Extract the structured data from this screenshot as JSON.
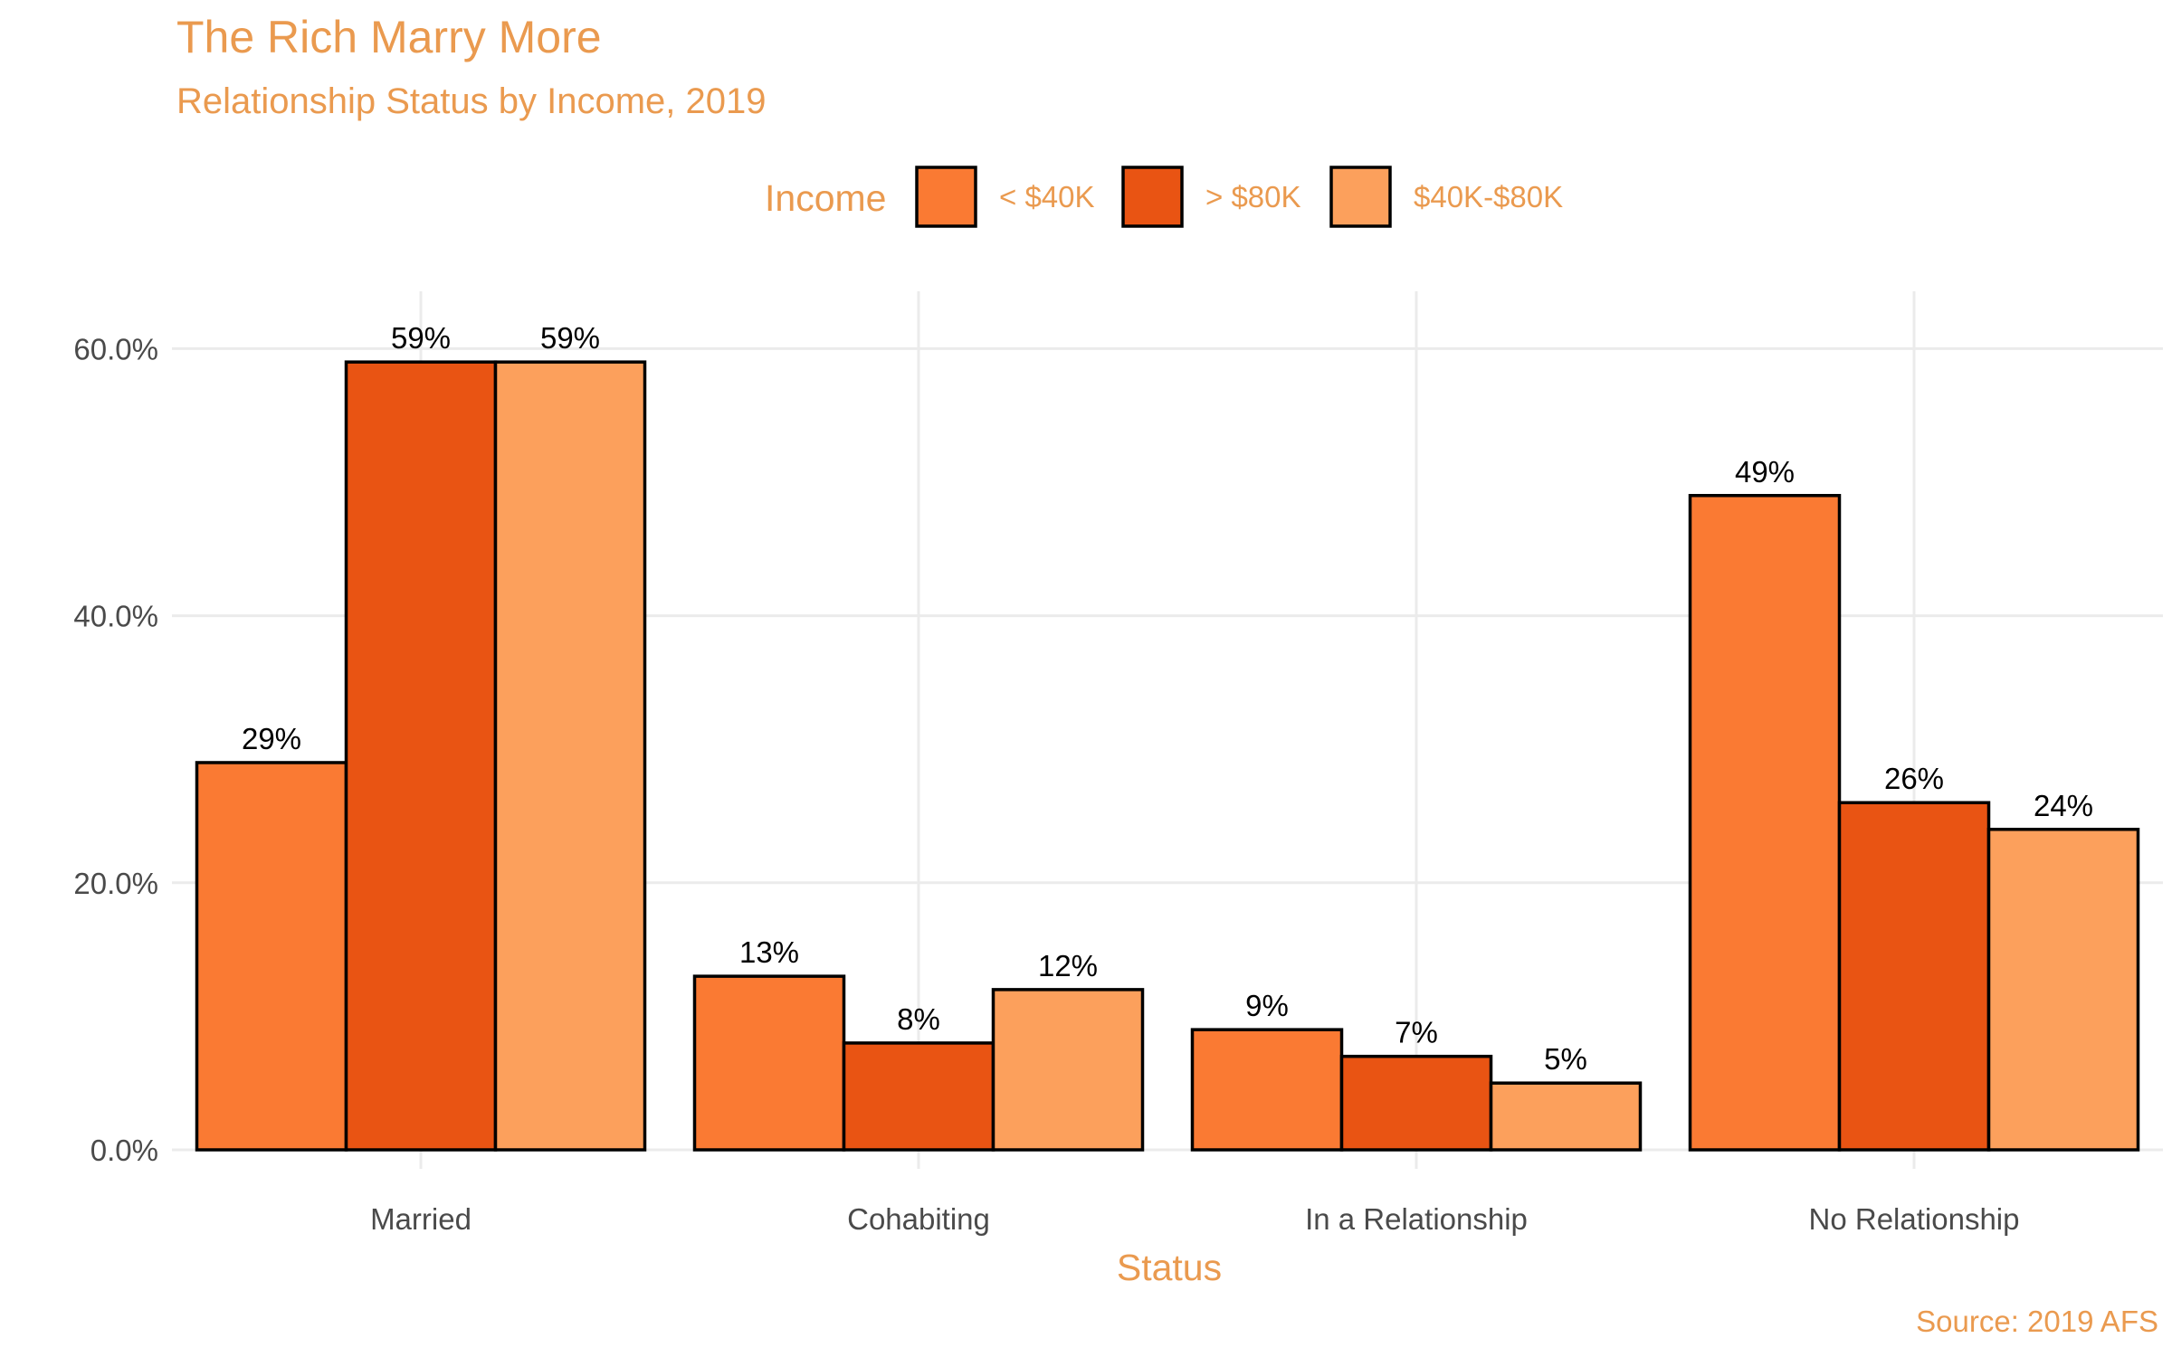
{
  "chart_data": {
    "type": "bar",
    "title": "The Rich Marry More",
    "subtitle": "Relationship Status by Income, 2019",
    "xlabel": "Status",
    "ylabel": "",
    "caption": "Source: 2019 AFS",
    "legend": {
      "title": "Income",
      "position": "top"
    },
    "categories": [
      "Married",
      "Cohabiting",
      "In a Relationship",
      "No Relationship"
    ],
    "series": [
      {
        "name": "< $40K",
        "color": "#fa7a33",
        "values": [
          29,
          13,
          9,
          49
        ]
      },
      {
        "name": "> $80K",
        "color": "#e95413",
        "values": [
          59,
          8,
          7,
          26
        ]
      },
      {
        "name": "$40K-$80K",
        "color": "#fca05c",
        "values": [
          59,
          12,
          5,
          24
        ]
      }
    ],
    "value_labels": [
      [
        "29%",
        "13%",
        "9%",
        "49%"
      ],
      [
        "59%",
        "8%",
        "7%",
        "26%"
      ],
      [
        "59%",
        "12%",
        "5%",
        "24%"
      ]
    ],
    "ylim": [
      0,
      63
    ],
    "yticks": [
      0,
      20,
      40,
      60
    ],
    "ytick_labels": [
      "0.0%",
      "20.0%",
      "40.0%",
      "60.0%"
    ],
    "grid": true
  }
}
